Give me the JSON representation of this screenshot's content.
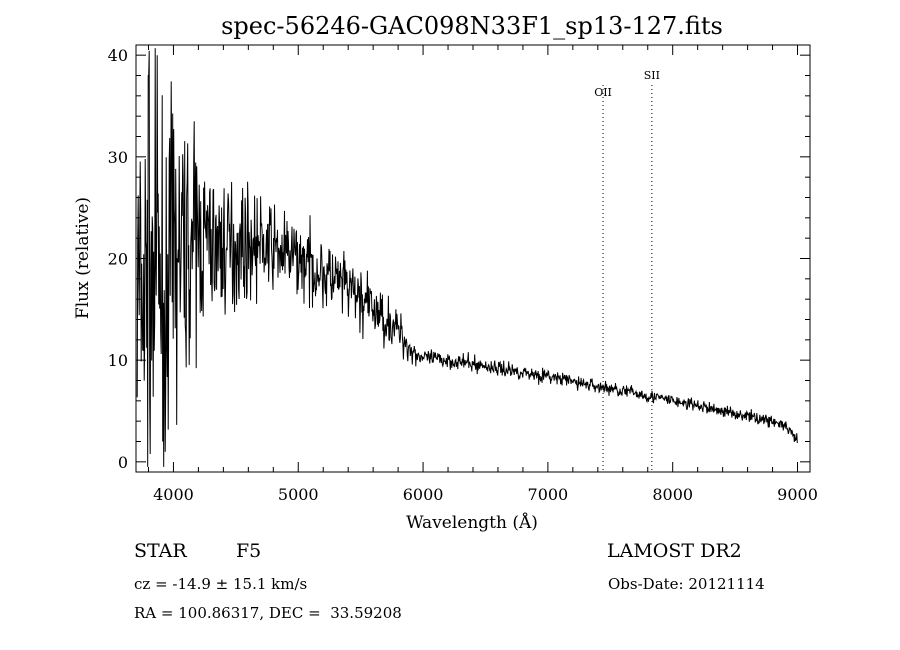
{
  "chart_data": {
    "type": "line",
    "title": "spec-56246-GAC098N33F1_sp13-127.fits",
    "xlabel": "Wavelength (Å)",
    "ylabel": "Flux (relative)",
    "xlim": [
      3700,
      9100
    ],
    "ylim": [
      -1,
      41
    ],
    "xticks": [
      "4000",
      "5000",
      "6000",
      "7000",
      "8000",
      "9000"
    ],
    "yticks": [
      "0",
      "10",
      "20",
      "30",
      "40"
    ],
    "continuum": {
      "x": [
        3750,
        3900,
        4000,
        4200,
        4400,
        4600,
        4800,
        5000,
        5200,
        5400,
        5600,
        5800,
        5900,
        6000,
        6200,
        6400,
        6600,
        6800,
        7000,
        7200,
        7400,
        7600,
        7800,
        8000,
        8200,
        8400,
        8600,
        8800,
        8900,
        9000
      ],
      "y": [
        16,
        18,
        20,
        22,
        21,
        21.5,
        21,
        20,
        18.5,
        17,
        15,
        13,
        11,
        10.2,
        10,
        9.6,
        9.2,
        8.8,
        8.4,
        7.9,
        7.4,
        7,
        6.5,
        6,
        5.5,
        5,
        4.5,
        4,
        3.5,
        2
      ]
    },
    "noise": {
      "x": [
        3700,
        4000,
        4300,
        4800,
        5500,
        5800,
        6000,
        7000,
        9000
      ],
      "y": [
        14,
        10,
        5,
        2.8,
        2.2,
        1.5,
        0.6,
        0.5,
        0.4
      ]
    },
    "spikes": [
      {
        "x": 3800,
        "y": 38
      },
      {
        "x": 3870,
        "y": 40
      },
      {
        "x": 3915,
        "y": 2
      },
      {
        "x": 3935,
        "y": 1
      }
    ],
    "lines": [
      {
        "label": "OII",
        "x": 7442
      },
      {
        "label": "SII",
        "x": 7833
      }
    ]
  },
  "info": {
    "object_class": "STAR",
    "subclass": "F5",
    "survey": "LAMOST DR2",
    "cz": "cz = -14.9 ± 15.1 km/s",
    "obs_date": "Obs-Date: 20121114",
    "coords": "RA = 100.86317, DEC =  33.59208"
  }
}
